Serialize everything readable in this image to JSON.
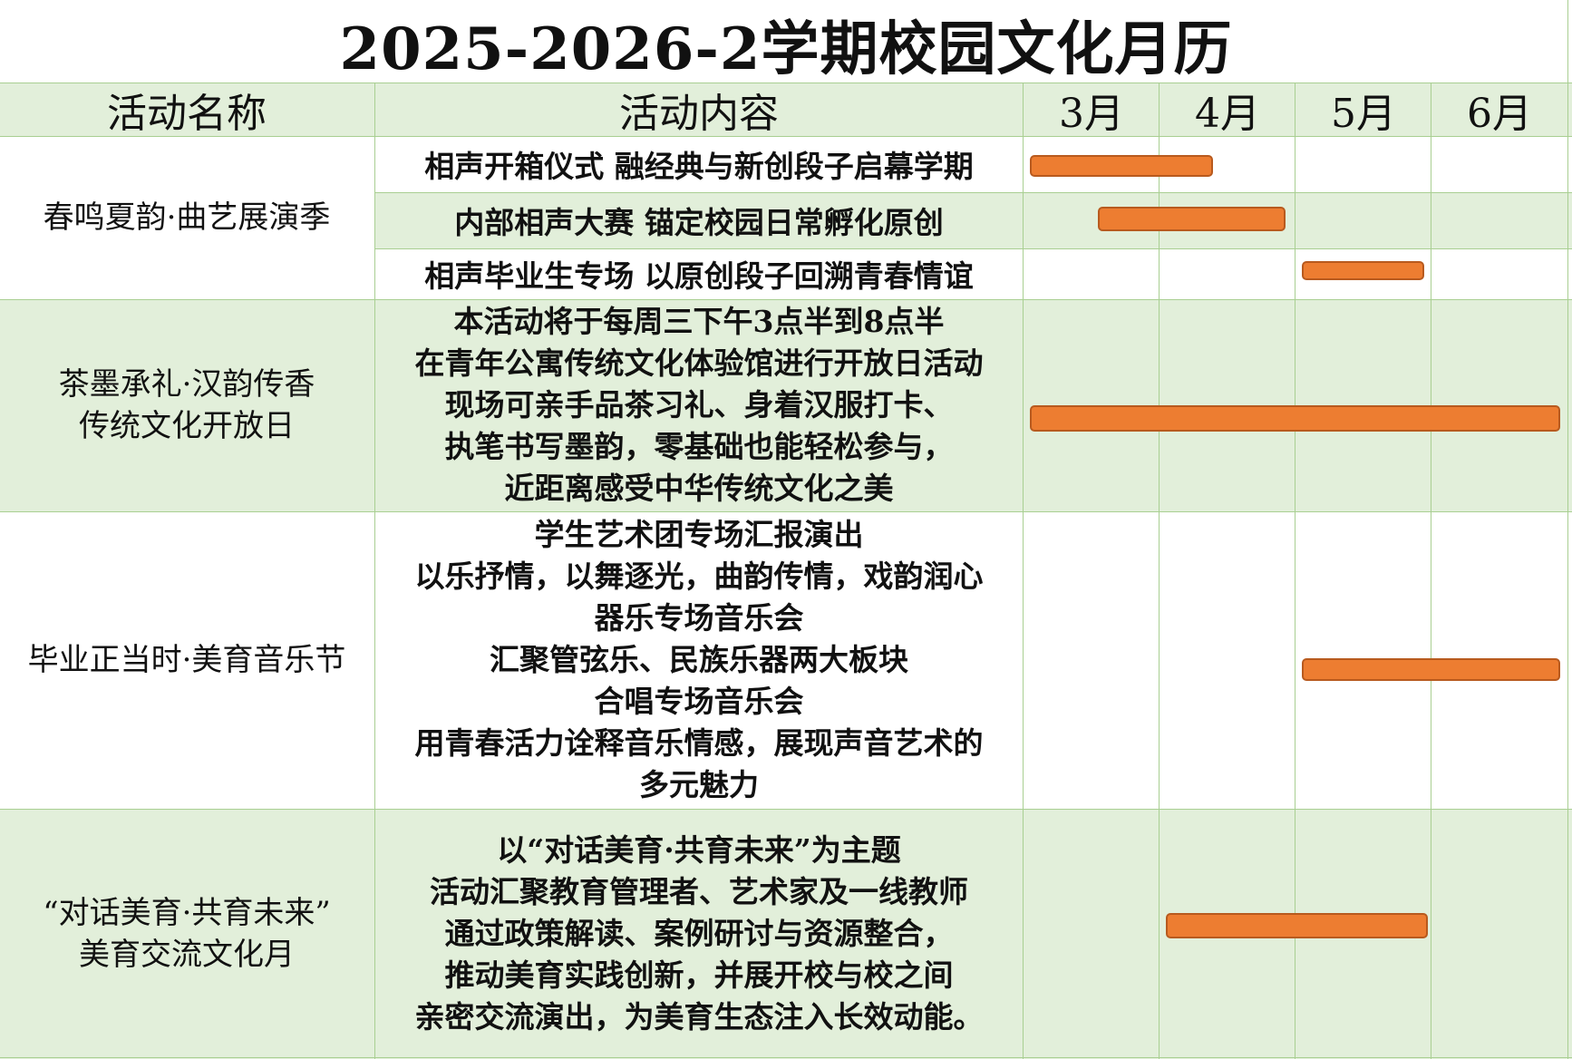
{
  "title": "2025-2026-2学期校园文化月历",
  "headers": {
    "name": "活动名称",
    "content": "活动内容",
    "months": [
      "3月",
      "4月",
      "5月",
      "6月"
    ]
  },
  "colors": {
    "header_bg": "#e2efda",
    "band_bg": "#e2efda",
    "grid": "#a9cf92",
    "bar": "#ed7d31"
  },
  "activities": [
    {
      "name_lines": [
        "春鸣夏韵·曲艺展演季"
      ],
      "items": [
        {
          "lines": [
            "相声开箱仪式 融经典与新创段子启幕学期"
          ],
          "start_month": 3.05,
          "end_month": 4.4
        },
        {
          "lines": [
            "内部相声大赛 锚定校园日常孵化原创"
          ],
          "start_month": 3.55,
          "end_month": 4.93
        },
        {
          "lines": [
            "相声毕业生专场 以原创段子回溯青春情谊"
          ],
          "start_month": 5.05,
          "end_month": 5.95
        }
      ]
    },
    {
      "name_lines": [
        "茶墨承礼·汉韵传香",
        "传统文化开放日"
      ],
      "lines": [
        "本活动将于每周三下午3点半到8点半",
        "在青年公寓传统文化体验馆进行开放日活动",
        "现场可亲手品茶习礼、身着汉服打卡、",
        "执笔书写墨韵，零基础也能轻松参与，",
        "近距离感受中华传统文化之美"
      ],
      "start_month": 3.05,
      "end_month": 6.95
    },
    {
      "name_lines": [
        "毕业正当时·美育音乐节"
      ],
      "lines": [
        "学生艺术团专场汇报演出",
        "以乐抒情，以舞逐光，曲韵传情，戏韵润心",
        "器乐专场音乐会",
        "汇聚管弦乐、民族乐器两大板块",
        "合唱专场音乐会",
        "用青春活力诠释音乐情感，展现声音艺术的",
        "多元魅力"
      ],
      "start_month": 5.05,
      "end_month": 6.95
    },
    {
      "name_lines": [
        "“对话美育·共育未来”",
        "美育交流文化月"
      ],
      "lines": [
        "以“对话美育·共育未来”为主题",
        "活动汇聚教育管理者、艺术家及一线教师",
        "通过政策解读、案例研讨与资源整合，",
        "推动美育实践创新，并展开校与校之间",
        "亲密交流演出，为美育生态注入长效动能。"
      ],
      "start_month": 4.05,
      "end_month": 5.98
    }
  ]
}
